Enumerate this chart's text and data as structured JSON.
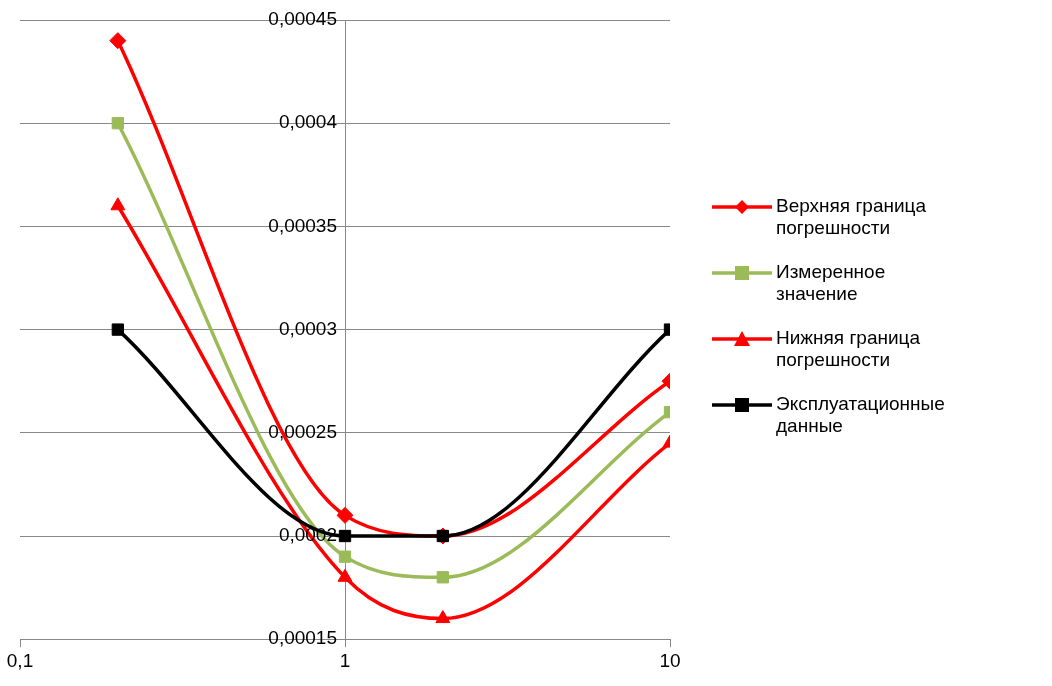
{
  "chart_data": {
    "type": "line",
    "x": [
      0.2,
      1,
      2,
      10
    ],
    "series": [
      {
        "name": "Верхняя граница погрешности",
        "color": "#ff0000",
        "marker": "diamond",
        "values": [
          0.00044,
          0.00021,
          0.0002,
          0.000275
        ]
      },
      {
        "name": "Измеренное значение",
        "color": "#9bbb59",
        "marker": "square",
        "values": [
          0.0004,
          0.00019,
          0.00018,
          0.00026
        ]
      },
      {
        "name": "Нижняя граница погрешности",
        "color": "#ff0000",
        "marker": "triangle",
        "values": [
          0.00036,
          0.00018,
          0.00016,
          0.000245
        ]
      },
      {
        "name": "Эксплуатационные данные",
        "color": "#000000",
        "marker": "square",
        "values": [
          0.0003,
          0.0002,
          0.0002,
          0.0003
        ]
      }
    ],
    "log": "x",
    "xlim": [
      0.1,
      10
    ],
    "xticks": [
      {
        "value": 0.1,
        "label": "0,1"
      },
      1,
      10
    ],
    "ylim": [
      0.00015,
      0.00045
    ],
    "yticks": [
      {
        "value": 0.00015,
        "label": "0,00015"
      },
      {
        "value": 0.0002,
        "label": "0,0002"
      },
      {
        "value": 0.00025,
        "label": "0,00025"
      },
      {
        "value": 0.0003,
        "label": "0,0003"
      },
      {
        "value": 0.00035,
        "label": "0,00035"
      },
      {
        "value": 0.0004,
        "label": "0,0004"
      },
      {
        "value": 0.00045,
        "label": "0,00045"
      }
    ],
    "grid": "y",
    "legend": "right",
    "line_style": "solid"
  }
}
